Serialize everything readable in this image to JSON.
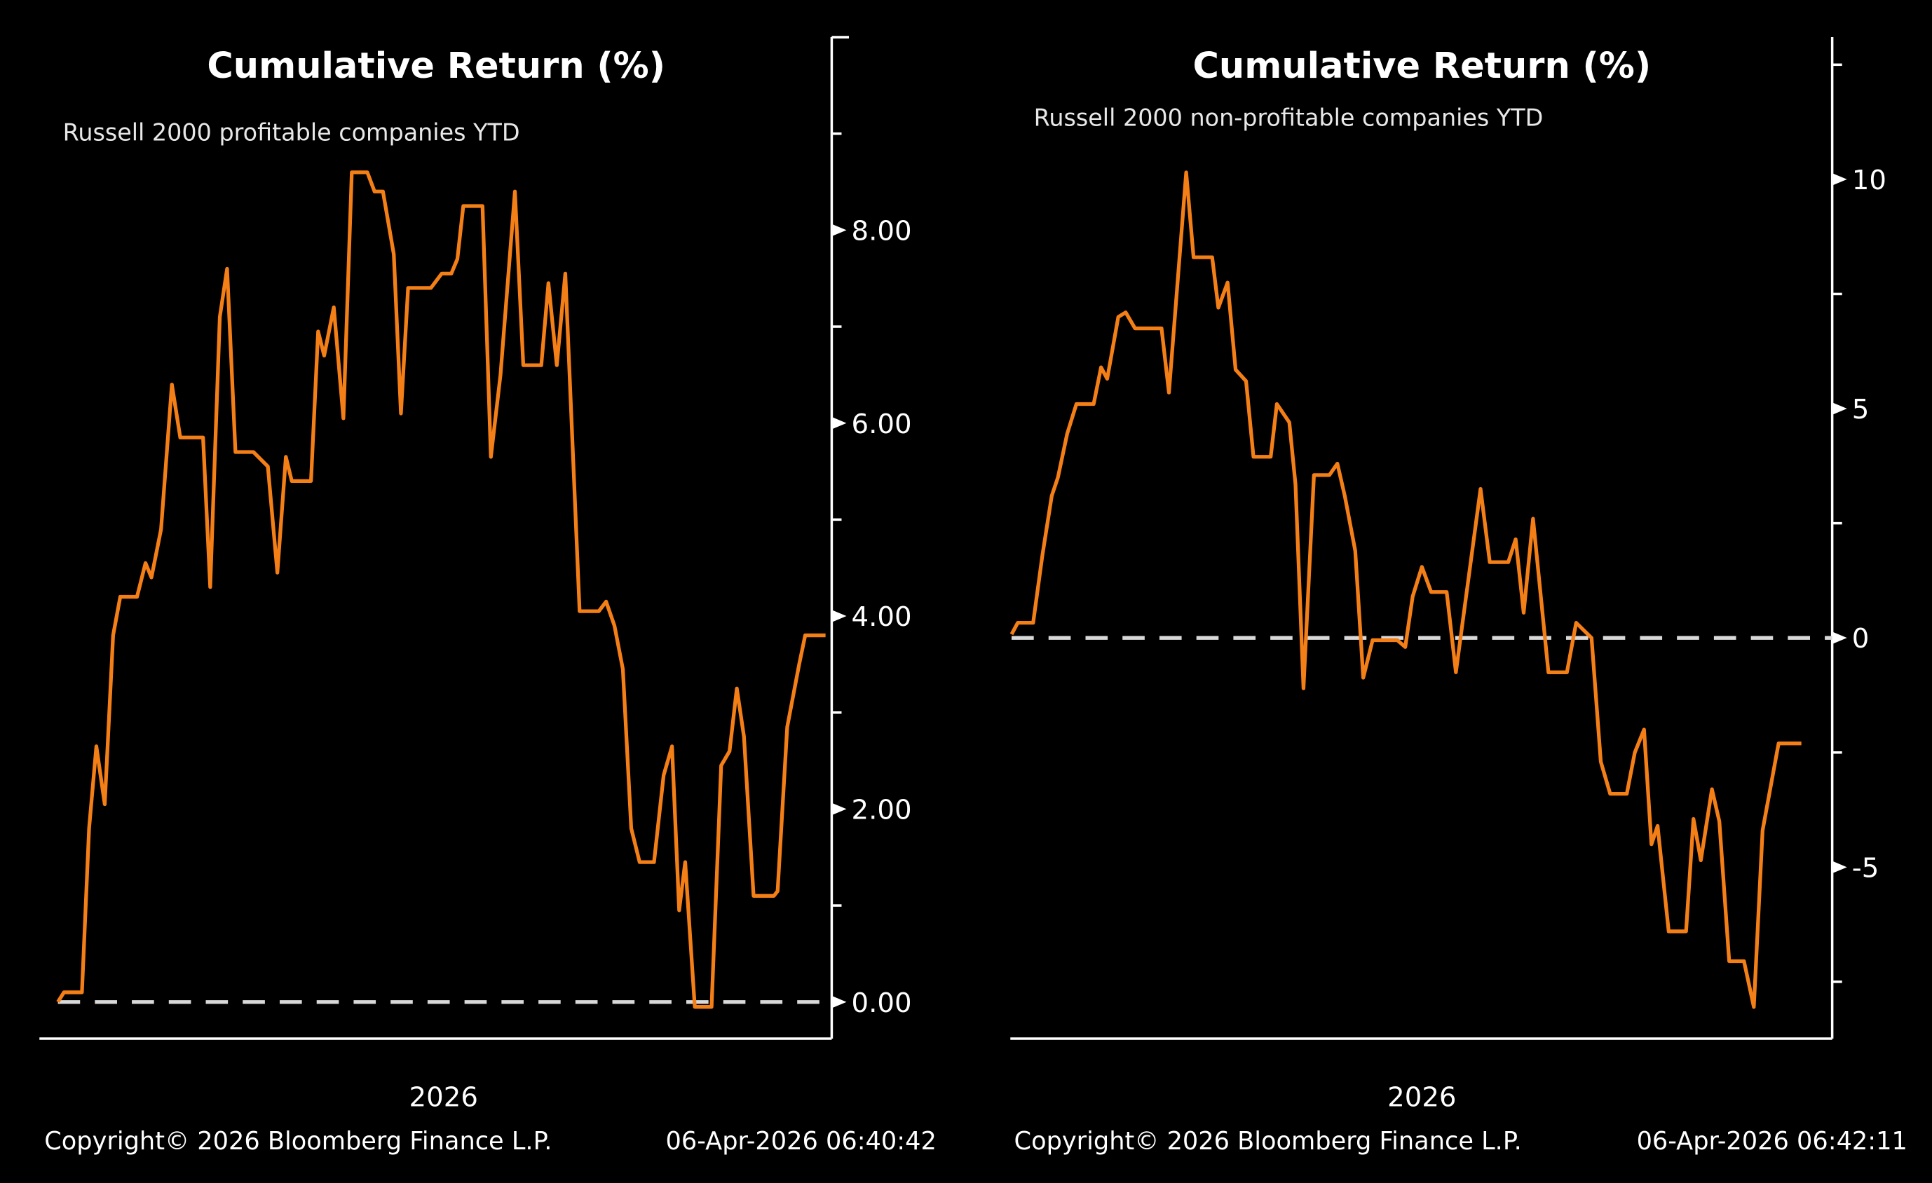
{
  "colors": {
    "background": "#000000",
    "series": "#f57f17",
    "axis": "#ffffff",
    "zero_line": "#d9d9d9"
  },
  "chart_data": [
    {
      "type": "line",
      "title": "Cumulative Return (%)",
      "subtitle": "Russell 2000 profitable companies YTD",
      "xlabel": "2026",
      "ylabel": "",
      "xlim": [
        0,
        64
      ],
      "ylim": [
        -0.38,
        10.0
      ],
      "y_ticks": [
        0,
        2,
        4,
        6,
        8
      ],
      "y_tick_labels": [
        "0.00",
        "2.00",
        "4.00",
        "6.00",
        "8.00"
      ],
      "y_minor_ticks": [
        1,
        3,
        5,
        7,
        9
      ],
      "reference_line": 0,
      "footer_left": "Copyright© 2026 Bloomberg Finance L.P.",
      "footer_right": "06-Apr-2026 06:40:42",
      "series": [
        {
          "name": "Russell 2000 profitable companies YTD",
          "x": [
            0,
            0.5,
            2,
            2.6,
            3.2,
            3.9,
            4.6,
            5.2,
            6.6,
            7.3,
            7.8,
            8.6,
            9.5,
            10.2,
            12.1,
            12.7,
            13.5,
            14.1,
            14.8,
            16.3,
            17.5,
            18.3,
            19,
            19.5,
            21.1,
            21.7,
            22.2,
            23,
            23.8,
            24.5,
            25.8,
            26.4,
            27.1,
            28,
            28.6,
            29.2,
            31.1,
            32,
            32.8,
            33.3,
            33.8,
            35.4,
            36.1,
            36.9,
            38.1,
            38.8,
            40.3,
            40.9,
            41.6,
            42.3,
            43.5,
            45.1,
            45.7,
            46.4,
            47.1,
            47.8,
            48.5,
            49.7,
            50.5,
            51.2,
            51.8,
            52.3,
            53.1,
            54.5,
            55.3,
            56,
            56.6,
            57.2,
            58,
            59.7,
            60,
            60.8,
            61.8,
            62.3,
            64
          ],
          "values": [
            0,
            0.1,
            0.1,
            1.8,
            2.65,
            2.05,
            3.8,
            4.2,
            4.2,
            4.55,
            4.4,
            4.9,
            6.4,
            5.85,
            5.85,
            4.3,
            7.1,
            7.6,
            5.7,
            5.7,
            5.55,
            4.45,
            5.65,
            5.4,
            5.4,
            6.95,
            6.7,
            7.2,
            6.05,
            8.6,
            8.6,
            8.4,
            8.4,
            7.75,
            6.1,
            7.4,
            7.4,
            7.55,
            7.55,
            7.7,
            8.25,
            8.25,
            5.65,
            6.5,
            8.4,
            6.6,
            6.6,
            7.45,
            6.6,
            7.55,
            4.05,
            4.05,
            4.15,
            3.9,
            3.45,
            1.8,
            1.45,
            1.45,
            2.35,
            2.65,
            0.95,
            1.45,
            -0.05,
            -0.05,
            2.45,
            2.6,
            3.25,
            2.75,
            1.1,
            1.1,
            1.15,
            2.85,
            3.5,
            3.8,
            3.8
          ]
        }
      ]
    },
    {
      "type": "line",
      "title": "Cumulative Return (%)",
      "subtitle": "Russell 2000 non-profitable companies YTD",
      "xlabel": "2026",
      "ylabel": "",
      "xlim": [
        0,
        64
      ],
      "ylim": [
        -8.74,
        13.1
      ],
      "y_ticks": [
        -5,
        0,
        5,
        10
      ],
      "y_tick_labels": [
        "-5",
        "0",
        "5",
        "10"
      ],
      "y_minor_ticks": [
        -7.5,
        -2.5,
        2.5,
        7.5,
        12.5
      ],
      "reference_line": 0,
      "footer_left": "Copyright© 2026 Bloomberg Finance L.P.",
      "footer_right": "06-Apr-2026 06:42:11",
      "series": [
        {
          "name": "Russell 2000 non-profitable companies YTD",
          "x": [
            0,
            0.5,
            1.75,
            2.5,
            3.25,
            3.75,
            4.5,
            5.25,
            6.65,
            7.25,
            7.75,
            8.65,
            9.25,
            10,
            12.15,
            12.75,
            14.15,
            14.75,
            16.25,
            16.75,
            17.5,
            18.15,
            19,
            19.6,
            21,
            21.5,
            22.5,
            23,
            23.65,
            24.5,
            25.75,
            26.4,
            27,
            27.85,
            28.5,
            29.25,
            31.25,
            31.9,
            32.5,
            33.25,
            34,
            35.25,
            36,
            38,
            38.75,
            40.25,
            40.85,
            41.5,
            42.25,
            43.5,
            45,
            45.75,
            47,
            47.75,
            48.5,
            49.85,
            50.5,
            51.25,
            51.85,
            52.35,
            53.25,
            54.65,
            55.25,
            55.85,
            56.75,
            57.35,
            58.15,
            59.35,
            60.15,
            60.85,
            62.15,
            64
          ],
          "values": [
            0.08,
            0.33,
            0.33,
            1.8,
            3.1,
            3.5,
            4.45,
            5.1,
            5.1,
            5.9,
            5.65,
            7.0,
            7.1,
            6.75,
            6.75,
            5.35,
            10.15,
            8.3,
            8.3,
            7.2,
            7.75,
            5.85,
            5.6,
            3.95,
            3.95,
            5.1,
            4.7,
            3.35,
            -1.1,
            3.55,
            3.55,
            3.8,
            3.1,
            1.9,
            -0.87,
            -0.05,
            -0.05,
            -0.2,
            0.9,
            1.55,
            1.0,
            1.0,
            -0.75,
            3.25,
            1.65,
            1.65,
            2.15,
            0.55,
            2.6,
            -0.75,
            -0.75,
            0.33,
            0,
            -2.7,
            -3.4,
            -3.4,
            -2.5,
            -2.0,
            -4.5,
            -4.1,
            -6.4,
            -6.4,
            -3.95,
            -4.85,
            -3.3,
            -4.0,
            -7.05,
            -7.05,
            -8.05,
            -4.2,
            -2.3,
            -2.3
          ]
        }
      ]
    }
  ]
}
